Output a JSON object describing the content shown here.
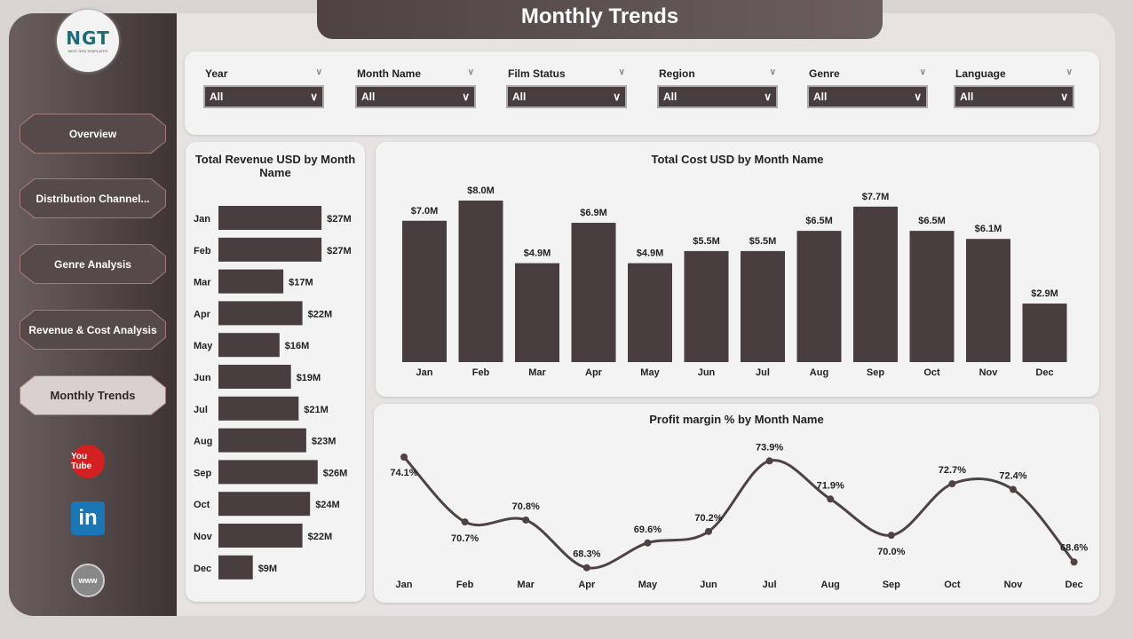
{
  "title": "Monthly Trends",
  "logo": {
    "text": "NGT",
    "subtitle": "NEXT GEN TEMPLATES"
  },
  "nav": [
    {
      "label": "Overview"
    },
    {
      "label": "Distribution Channel..."
    },
    {
      "label": "Genre Analysis"
    },
    {
      "label": "Revenue & Cost Analysis"
    },
    {
      "label": "Monthly Trends",
      "active": true
    }
  ],
  "social": [
    {
      "icon": "youtube-icon",
      "label": "You Tube"
    },
    {
      "icon": "linkedin-icon",
      "label": "in"
    },
    {
      "icon": "globe-icon",
      "label": "www"
    }
  ],
  "filters": [
    {
      "label": "Year",
      "value": "All"
    },
    {
      "label": "Month Name",
      "value": "All"
    },
    {
      "label": "Film Status",
      "value": "All"
    },
    {
      "label": "Region",
      "value": "All"
    },
    {
      "label": "Genre",
      "value": "All"
    },
    {
      "label": "Language",
      "value": "All"
    }
  ],
  "colors": {
    "bar": "#483e3f",
    "accent": "#4e4243"
  },
  "chart_data": [
    {
      "type": "bar",
      "orientation": "horizontal",
      "title": "Total Revenue USD by Month Name",
      "categories": [
        "Jan",
        "Feb",
        "Mar",
        "Apr",
        "May",
        "Jun",
        "Jul",
        "Aug",
        "Sep",
        "Oct",
        "Nov",
        "Dec"
      ],
      "values": [
        27,
        27,
        17,
        22,
        16,
        19,
        21,
        23,
        26,
        24,
        22,
        9
      ],
      "labels": [
        "$27M",
        "$27M",
        "$17M",
        "$22M",
        "$16M",
        "$19M",
        "$21M",
        "$23M",
        "$26M",
        "$24M",
        "$22M",
        "$9M"
      ],
      "unit": "USD M"
    },
    {
      "type": "bar",
      "title": "Total Cost USD by Month Name",
      "categories": [
        "Jan",
        "Feb",
        "Mar",
        "Apr",
        "May",
        "Jun",
        "Jul",
        "Aug",
        "Sep",
        "Oct",
        "Nov",
        "Dec"
      ],
      "values": [
        7.0,
        8.0,
        4.9,
        6.9,
        4.9,
        5.5,
        5.5,
        6.5,
        7.7,
        6.5,
        6.1,
        2.9
      ],
      "labels": [
        "$7.0M",
        "$8.0M",
        "$4.9M",
        "$6.9M",
        "$4.9M",
        "$5.5M",
        "$5.5M",
        "$6.5M",
        "$7.7M",
        "$6.5M",
        "$6.1M",
        "$2.9M"
      ],
      "unit": "USD M"
    },
    {
      "type": "line",
      "title": "Profit margin % by Month Name",
      "categories": [
        "Jan",
        "Feb",
        "Mar",
        "Apr",
        "May",
        "Jun",
        "Jul",
        "Aug",
        "Sep",
        "Oct",
        "Nov",
        "Dec"
      ],
      "values": [
        74.1,
        70.7,
        70.8,
        68.3,
        69.6,
        70.2,
        73.9,
        71.9,
        70.0,
        72.7,
        72.4,
        68.6
      ],
      "labels": [
        "74.1%",
        "70.7%",
        "70.8%",
        "68.3%",
        "69.6%",
        "70.2%",
        "73.9%",
        "71.9%",
        "70.0%",
        "72.7%",
        "72.4%",
        "68.6%"
      ]
    }
  ]
}
